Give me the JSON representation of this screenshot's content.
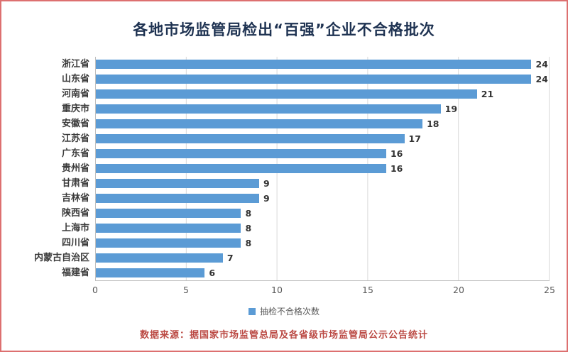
{
  "chart_data": {
    "type": "bar",
    "orientation": "horizontal",
    "title": "各地市场监管局检出“百强”企业不合格批次",
    "categories": [
      "浙江省",
      "山东省",
      "河南省",
      "重庆市",
      "安徽省",
      "江苏省",
      "广东省",
      "贵州省",
      "甘肃省",
      "吉林省",
      "陕西省",
      "上海市",
      "四川省",
      "内蒙古自治区",
      "福建省"
    ],
    "values": [
      24,
      24,
      21,
      19,
      18,
      17,
      16,
      16,
      9,
      9,
      8,
      8,
      8,
      7,
      6
    ],
    "xlim": [
      0,
      25
    ],
    "x_ticks": [
      0,
      5,
      10,
      15,
      20,
      25
    ],
    "legend_label": "抽检不合格次数",
    "legend_position": "bottom",
    "grid": true,
    "bar_color": "#5B9BD5"
  },
  "footer": {
    "text": "数据来源：据国家市场监管总局及各省级市场监管局公示公告统计"
  },
  "colors": {
    "title": "#1F3352",
    "footer_text": "#BB4A44",
    "frame_border": "#DD7070",
    "axis_text": "#595959",
    "category_text": "#3B3B3B",
    "gridline": "#D9D9D9",
    "bar": "#5B9BD5"
  }
}
